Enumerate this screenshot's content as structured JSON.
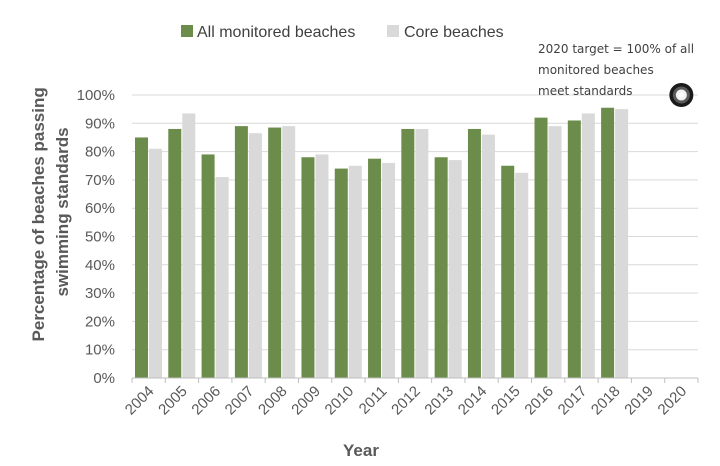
{
  "chart_data": {
    "type": "bar",
    "xlabel": "Year",
    "ylabel_lines": [
      "Percentage of beaches passing",
      "swimming standards"
    ],
    "ylim": [
      0,
      100
    ],
    "y_ticks": [
      "0%",
      "10%",
      "20%",
      "30%",
      "40%",
      "50%",
      "60%",
      "70%",
      "80%",
      "90%",
      "100%"
    ],
    "categories": [
      "2004",
      "2005",
      "2006",
      "2007",
      "2008",
      "2009",
      "2010",
      "2011",
      "2012",
      "2013",
      "2014",
      "2015",
      "2016",
      "2017",
      "2018",
      "2019",
      "2020"
    ],
    "series": [
      {
        "name": "All monitored beaches",
        "color": "#6b8c4a",
        "values": [
          85,
          88,
          79,
          89,
          88.5,
          78,
          74,
          77.5,
          88,
          78,
          88,
          75,
          92,
          91,
          95.5,
          null,
          null
        ]
      },
      {
        "name": "Core beaches",
        "color": "#d9d9d9",
        "values": [
          81,
          93.5,
          71,
          86.5,
          89,
          79,
          75,
          76,
          88,
          77,
          86,
          72.5,
          89,
          93.5,
          95,
          null,
          null
        ]
      }
    ],
    "grid": true,
    "legend_position": "top",
    "annotation": {
      "lines": [
        "2020 target = 100% of all",
        "monitored  beaches",
        "meet standards"
      ],
      "marker": "target-circle",
      "marker_year": "2020",
      "marker_value": 100
    }
  }
}
